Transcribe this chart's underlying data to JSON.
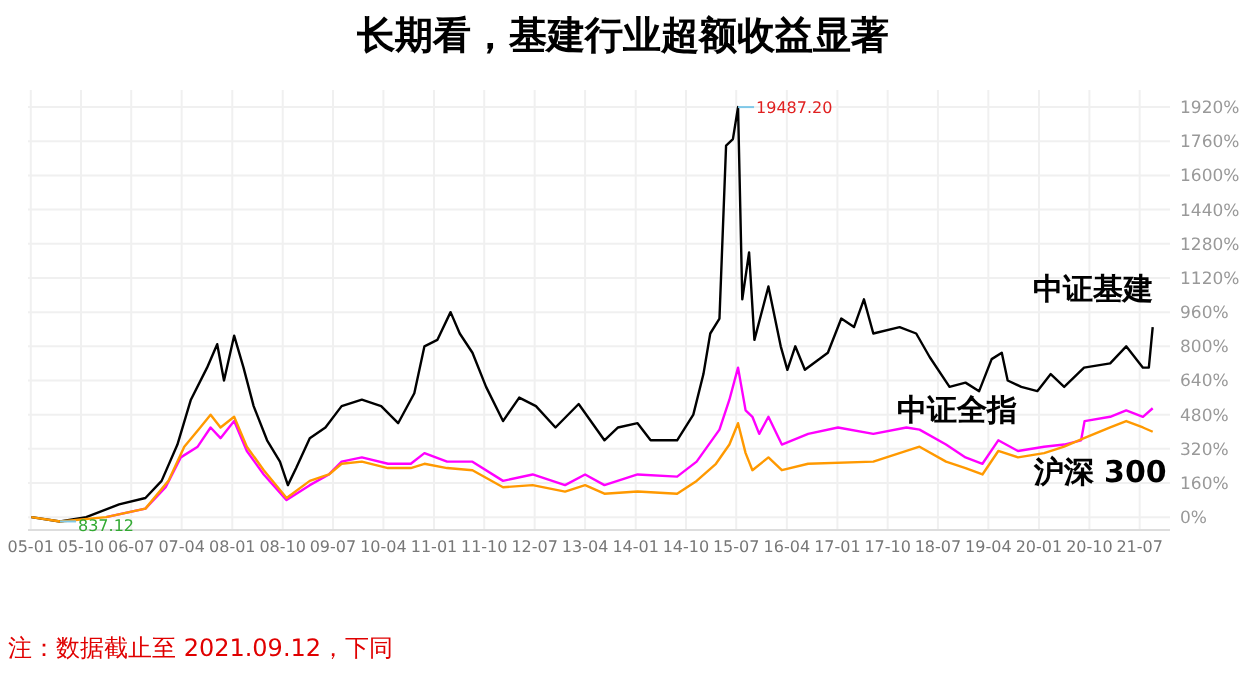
{
  "chart_data": {
    "type": "line",
    "title": "长期看，基建行业超额收益显著",
    "annotations": [
      {
        "text": "19487.20",
        "x": "2015-07-11",
        "y": 1920
      },
      {
        "text": "837.12",
        "x": "2005-06-09",
        "y": -20
      },
      "注：数据截止至 2021.09.12，下同"
    ],
    "xlim": [
      "2004-12-17",
      "2021-12-13"
    ],
    "ylim": [
      -60,
      2000
    ],
    "xticks": [
      {
        "value": "2005-01",
        "label": "05-01"
      },
      {
        "value": "2005-10",
        "label": "05-10"
      },
      {
        "value": "2006-07",
        "label": "06-07"
      },
      {
        "value": "2007-04",
        "label": "07-04"
      },
      {
        "value": "2008-01",
        "label": "08-01"
      },
      {
        "value": "2008-10",
        "label": "08-10"
      },
      {
        "value": "2009-07",
        "label": "09-07"
      },
      {
        "value": "2010-04",
        "label": "10-04"
      },
      {
        "value": "2011-01",
        "label": "11-01"
      },
      {
        "value": "2011-10",
        "label": "11-10"
      },
      {
        "value": "2012-07",
        "label": "12-07"
      },
      {
        "value": "2013-04",
        "label": "13-04"
      },
      {
        "value": "2014-01",
        "label": "14-01"
      },
      {
        "value": "2014-10",
        "label": "14-10"
      },
      {
        "value": "2015-07",
        "label": "15-07"
      },
      {
        "value": "2016-04",
        "label": "16-04"
      },
      {
        "value": "2017-01",
        "label": "17-01"
      },
      {
        "value": "2017-10",
        "label": "17-10"
      },
      {
        "value": "2018-07",
        "label": "18-07"
      },
      {
        "value": "2019-04",
        "label": "19-04"
      },
      {
        "value": "2020-01",
        "label": "20-01"
      },
      {
        "value": "2020-10",
        "label": "20-10"
      },
      {
        "value": "2021-07",
        "label": "21-07"
      }
    ],
    "yticks": [
      {
        "value": 0,
        "label": "0%"
      },
      {
        "value": 160,
        "label": "160%"
      },
      {
        "value": 320,
        "label": "320%"
      },
      {
        "value": 480,
        "label": "480%"
      },
      {
        "value": 640,
        "label": "640%"
      },
      {
        "value": 800,
        "label": "800%"
      },
      {
        "value": 960,
        "label": "960%"
      },
      {
        "value": 1120,
        "label": "1120%"
      },
      {
        "value": 1280,
        "label": "1280%"
      },
      {
        "value": 1440,
        "label": "1440%"
      },
      {
        "value": 1600,
        "label": "1600%"
      },
      {
        "value": 1760,
        "label": "1760%"
      },
      {
        "value": 1920,
        "label": "1920%"
      }
    ],
    "grid": true,
    "series": [
      {
        "name": "中证基建",
        "color": "#000000",
        "x": [
          "2005-01-04",
          "2005-06-09",
          "2005-10-29",
          "2006-04-26",
          "2006-09-16",
          "2006-12-13",
          "2007-03-09",
          "2007-05-21",
          "2007-08-17",
          "2007-10-11",
          "2007-11-17",
          "2008-01-11",
          "2008-03-02",
          "2008-04-26",
          "2008-07-08",
          "2008-09-16",
          "2008-10-29",
          "2008-12-13",
          "2009-02-25",
          "2009-05-21",
          "2009-08-17",
          "2009-12-05",
          "2010-03-20",
          "2010-06-20",
          "2010-09-16",
          "2010-11-10",
          "2011-01-19",
          "2011-04-01",
          "2011-05-21",
          "2011-07-29",
          "2011-10-11",
          "2012-01-11",
          "2012-04-08",
          "2012-07-08",
          "2012-10-22",
          "2013-02-25",
          "2013-07-15",
          "2013-09-27",
          "2014-01-11",
          "2014-03-23",
          "2014-08-14",
          "2014-11-10",
          "2015-01-04",
          "2015-02-10",
          "2015-04-01",
          "2015-05-07",
          "2015-06-13",
          "2015-07-11",
          "2015-08-03",
          "2015-09-09",
          "2015-10-08",
          "2015-12-23",
          "2016-02-28",
          "2016-04-04",
          "2016-05-17",
          "2016-07-08",
          "2016-11-10",
          "2017-01-22",
          "2017-04-01",
          "2017-05-25",
          "2017-07-15",
          "2017-12-05",
          "2018-03-05",
          "2018-05-17",
          "2018-09-02",
          "2018-11-28",
          "2019-02-10",
          "2019-04-19",
          "2019-06-13",
          "2019-07-15",
          "2019-09-27",
          "2019-12-23",
          "2020-03-05",
          "2020-05-17",
          "2020-09-02",
          "2021-01-22",
          "2021-04-19",
          "2021-07-19",
          "2021-08-20",
          "2021-09-10"
        ],
        "values": [
          0,
          -20,
          0,
          60,
          90,
          170,
          340,
          550,
          700,
          810,
          640,
          850,
          700,
          520,
          360,
          260,
          150,
          230,
          370,
          420,
          520,
          550,
          520,
          440,
          580,
          800,
          830,
          960,
          860,
          770,
          610,
          450,
          560,
          520,
          420,
          530,
          360,
          420,
          440,
          360,
          360,
          480,
          670,
          860,
          930,
          1740,
          1770,
          1920,
          1020,
          1240,
          830,
          1080,
          800,
          690,
          800,
          690,
          770,
          930,
          890,
          1020,
          860,
          890,
          860,
          750,
          610,
          630,
          590,
          740,
          770,
          640,
          610,
          590,
          670,
          610,
          700,
          720,
          800,
          700,
          700,
          890
        ]
      },
      {
        "name": "中证全指",
        "color": "#ff00ff",
        "x": [
          "2006-02-14",
          "2006-09-16",
          "2007-01-04",
          "2007-03-27",
          "2007-06-27",
          "2007-09-05",
          "2007-10-29",
          "2008-01-11",
          "2008-03-20",
          "2008-06-20",
          "2008-10-22",
          "2009-02-25",
          "2009-06-09",
          "2009-08-17",
          "2009-12-05",
          "2010-04-26",
          "2010-08-28",
          "2010-11-10",
          "2011-03-13",
          "2011-07-29",
          "2012-01-11",
          "2012-06-20",
          "2012-12-13",
          "2013-04-01",
          "2013-07-15",
          "2014-01-11",
          "2014-08-14",
          "2014-11-28",
          "2015-04-01",
          "2015-05-25",
          "2015-07-11",
          "2015-08-21",
          "2015-09-27",
          "2015-11-03",
          "2015-12-23",
          "2016-03-05",
          "2016-07-26",
          "2017-01-04",
          "2017-07-15",
          "2018-01-11",
          "2018-03-23",
          "2018-08-14",
          "2018-11-28",
          "2019-02-28",
          "2019-05-25",
          "2019-09-09",
          "2020-01-29",
          "2020-05-17",
          "2020-08-17",
          "2020-09-05",
          "2021-01-22",
          "2021-04-19",
          "2021-07-19",
          "2021-09-10"
        ],
        "values": [
          0,
          40,
          140,
          280,
          330,
          420,
          370,
          450,
          310,
          200,
          80,
          150,
          200,
          260,
          280,
          250,
          250,
          300,
          260,
          260,
          170,
          200,
          150,
          200,
          150,
          200,
          190,
          260,
          410,
          550,
          700,
          500,
          470,
          390,
          470,
          340,
          390,
          420,
          390,
          420,
          410,
          340,
          280,
          250,
          360,
          310,
          330,
          340,
          360,
          450,
          470,
          500,
          470,
          510
        ]
      },
      {
        "name": "沪深 300",
        "color": "#ff9900",
        "x": [
          "2005-01-04",
          "2005-06-09",
          "2006-02-14",
          "2006-09-16",
          "2007-01-19",
          "2007-04-15",
          "2007-07-11",
          "2007-09-05",
          "2007-10-29",
          "2008-01-11",
          "2008-03-20",
          "2008-06-20",
          "2008-10-22",
          "2009-02-25",
          "2009-06-09",
          "2009-08-17",
          "2009-12-05",
          "2010-04-26",
          "2010-08-28",
          "2010-11-10",
          "2011-03-13",
          "2011-07-29",
          "2012-01-11",
          "2012-06-20",
          "2012-12-13",
          "2013-04-01",
          "2013-07-15",
          "2014-01-11",
          "2014-08-14",
          "2014-11-28",
          "2015-03-13",
          "2015-05-25",
          "2015-07-11",
          "2015-08-21",
          "2015-09-27",
          "2015-12-23",
          "2016-03-05",
          "2016-07-26",
          "2017-07-15",
          "2018-01-11",
          "2018-03-23",
          "2018-08-14",
          "2018-11-28",
          "2019-02-28",
          "2019-05-25",
          "2019-09-09",
          "2020-01-29",
          "2020-05-17",
          "2020-09-02",
          "2021-01-22",
          "2021-04-19",
          "2021-07-19",
          "2021-09-10"
        ],
        "values": [
          0,
          -20,
          0,
          40,
          170,
          330,
          420,
          480,
          420,
          470,
          330,
          220,
          90,
          170,
          200,
          250,
          260,
          230,
          230,
          250,
          230,
          220,
          140,
          150,
          120,
          150,
          110,
          120,
          110,
          170,
          250,
          340,
          440,
          300,
          220,
          280,
          220,
          250,
          260,
          310,
          330,
          260,
          230,
          200,
          310,
          280,
          300,
          330,
          370,
          420,
          450,
          420,
          400
        ]
      }
    ]
  }
}
